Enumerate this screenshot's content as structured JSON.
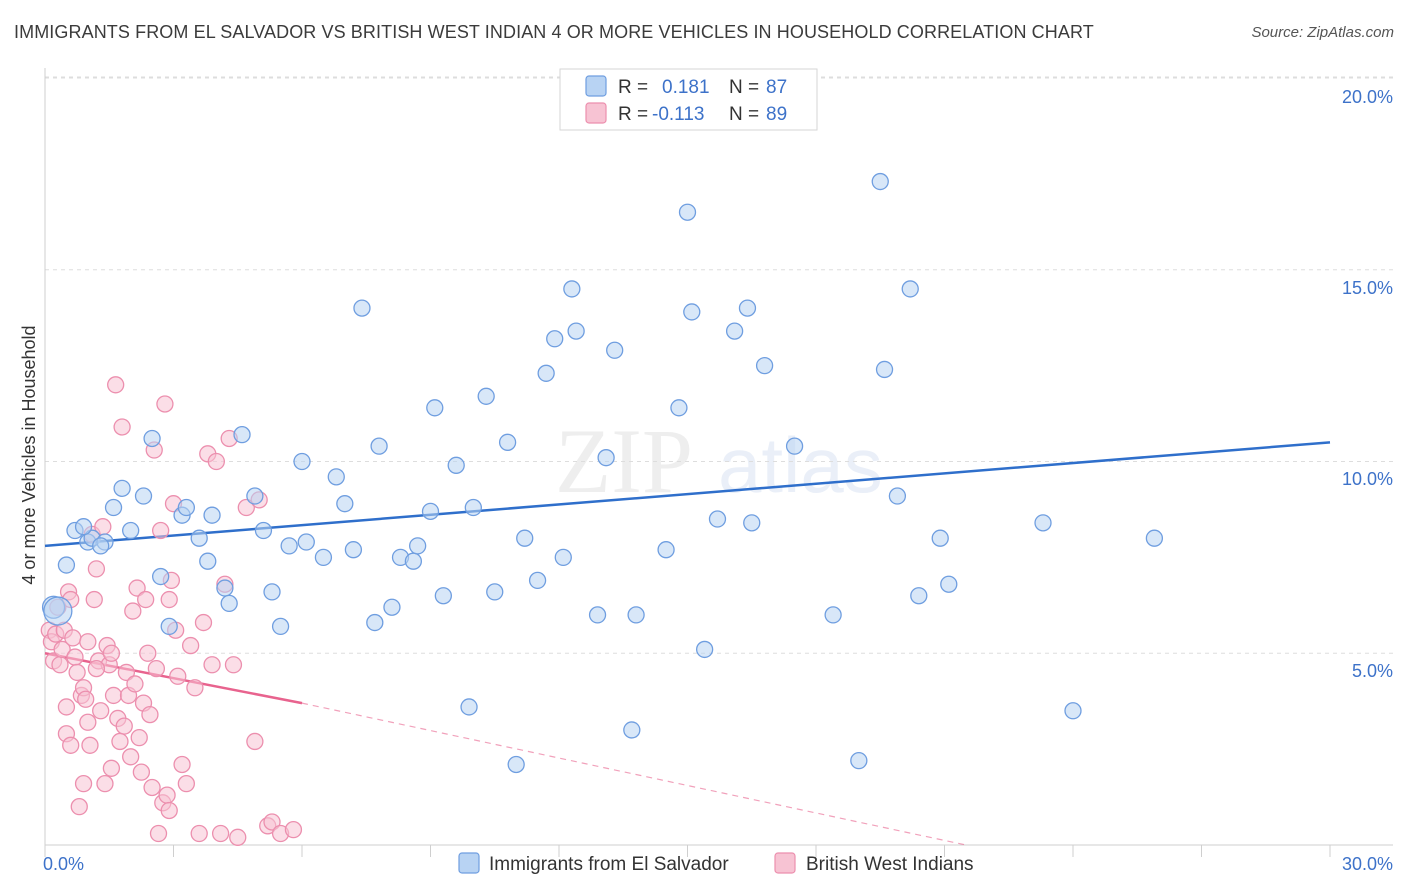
{
  "title": "IMMIGRANTS FROM EL SALVADOR VS BRITISH WEST INDIAN 4 OR MORE VEHICLES IN HOUSEHOLD CORRELATION CHART",
  "source": "Source: ZipAtlas.com",
  "watermark": {
    "zip": "ZIP",
    "atlas": "atlas"
  },
  "legend": [
    {
      "r_label": "R =",
      "r_value": "0.181",
      "n_label": "N =",
      "n_value": "87"
    },
    {
      "r_label": "R =",
      "r_value": "-0.113",
      "n_label": "N =",
      "n_value": "89"
    }
  ],
  "colors": {
    "blue_fill": "#b8d3f3",
    "blue_stroke": "#6f9ee0",
    "blue_line": "#2f6fcb",
    "pink_fill": "#f7c3d3",
    "pink_stroke": "#ec8fae",
    "pink_line": "#e8638e",
    "grid": "#dddddd",
    "tick_text": "#3d72c9"
  },
  "chart_data": {
    "type": "scatter",
    "title": "IMMIGRANTS FROM EL SALVADOR VS BRITISH WEST INDIAN 4 OR MORE VEHICLES IN HOUSEHOLD CORRELATION CHART",
    "xlabel": "",
    "ylabel": "4 or more Vehicles in Household",
    "xlim": [
      0,
      30
    ],
    "ylim": [
      0,
      20
    ],
    "x_tick_labels": [
      "0.0%",
      "30.0%"
    ],
    "y_ticks": [
      5,
      10,
      15,
      20
    ],
    "y_tick_labels": [
      "5.0%",
      "10.0%",
      "15.0%",
      "20.0%"
    ],
    "legend_position": "top-center",
    "series": [
      {
        "name": "Immigrants from El Salvador",
        "color": "#6f9ee0",
        "trend": {
          "x": [
            0,
            30
          ],
          "y": [
            7.8,
            10.5
          ]
        },
        "points": [
          [
            0.2,
            6.2
          ],
          [
            0.5,
            7.3
          ],
          [
            0.7,
            8.2
          ],
          [
            1.0,
            7.9
          ],
          [
            1.1,
            8.0
          ],
          [
            1.4,
            7.9
          ],
          [
            1.6,
            8.8
          ],
          [
            1.8,
            9.3
          ],
          [
            2.0,
            8.2
          ],
          [
            2.3,
            9.1
          ],
          [
            2.5,
            10.6
          ],
          [
            2.7,
            7.0
          ],
          [
            2.9,
            5.7
          ],
          [
            3.2,
            8.6
          ],
          [
            3.3,
            8.8
          ],
          [
            3.6,
            8.0
          ],
          [
            3.8,
            7.4
          ],
          [
            3.9,
            8.6
          ],
          [
            4.2,
            6.7
          ],
          [
            4.3,
            6.3
          ],
          [
            4.6,
            10.7
          ],
          [
            4.9,
            9.1
          ],
          [
            5.1,
            8.2
          ],
          [
            5.3,
            6.6
          ],
          [
            5.5,
            5.7
          ],
          [
            5.7,
            7.8
          ],
          [
            6.0,
            10.0
          ],
          [
            6.1,
            7.9
          ],
          [
            6.5,
            7.5
          ],
          [
            6.8,
            9.6
          ],
          [
            7.0,
            8.9
          ],
          [
            7.2,
            7.7
          ],
          [
            7.4,
            14.0
          ],
          [
            7.7,
            5.8
          ],
          [
            7.8,
            10.4
          ],
          [
            8.1,
            6.2
          ],
          [
            8.3,
            7.5
          ],
          [
            8.6,
            7.4
          ],
          [
            8.7,
            7.8
          ],
          [
            9.0,
            8.7
          ],
          [
            9.1,
            11.4
          ],
          [
            9.3,
            6.5
          ],
          [
            9.6,
            9.9
          ],
          [
            9.9,
            3.6
          ],
          [
            10.0,
            8.8
          ],
          [
            10.3,
            11.7
          ],
          [
            10.5,
            6.6
          ],
          [
            10.8,
            10.5
          ],
          [
            11.0,
            2.1
          ],
          [
            11.2,
            8.0
          ],
          [
            11.5,
            6.9
          ],
          [
            11.7,
            12.3
          ],
          [
            11.9,
            13.2
          ],
          [
            12.1,
            7.5
          ],
          [
            12.3,
            14.5
          ],
          [
            12.4,
            13.4
          ],
          [
            12.9,
            6.0
          ],
          [
            13.1,
            10.1
          ],
          [
            13.3,
            12.9
          ],
          [
            13.7,
            3.0
          ],
          [
            13.8,
            6.0
          ],
          [
            14.5,
            7.7
          ],
          [
            14.8,
            11.4
          ],
          [
            15.0,
            16.5
          ],
          [
            15.1,
            13.9
          ],
          [
            15.4,
            5.1
          ],
          [
            15.7,
            8.5
          ],
          [
            16.1,
            13.4
          ],
          [
            16.4,
            14.0
          ],
          [
            16.5,
            8.4
          ],
          [
            16.8,
            12.5
          ],
          [
            17.5,
            10.4
          ],
          [
            18.4,
            6.0
          ],
          [
            19.0,
            2.2
          ],
          [
            19.5,
            17.3
          ],
          [
            19.6,
            12.4
          ],
          [
            19.9,
            9.1
          ],
          [
            20.2,
            14.5
          ],
          [
            20.4,
            6.5
          ],
          [
            20.9,
            8.0
          ],
          [
            21.1,
            6.8
          ],
          [
            23.3,
            8.4
          ],
          [
            24.0,
            3.5
          ],
          [
            25.9,
            8.0
          ],
          [
            0.3,
            6.1
          ],
          [
            0.9,
            8.3
          ],
          [
            1.3,
            7.8
          ]
        ]
      },
      {
        "name": "British West Indians",
        "color": "#ec8fae",
        "trend": {
          "x": [
            0,
            6.0
          ],
          "y": [
            5.0,
            3.7
          ],
          "x_dashed": [
            6.0,
            21.5
          ],
          "y_dashed": [
            3.7,
            0.0
          ]
        },
        "points": [
          [
            0.1,
            5.6
          ],
          [
            0.15,
            5.3
          ],
          [
            0.2,
            4.8
          ],
          [
            0.25,
            5.5
          ],
          [
            0.3,
            6.2
          ],
          [
            0.35,
            4.7
          ],
          [
            0.4,
            5.1
          ],
          [
            0.45,
            5.6
          ],
          [
            0.5,
            3.6
          ],
          [
            0.5,
            2.9
          ],
          [
            0.55,
            6.6
          ],
          [
            0.6,
            6.4
          ],
          [
            0.65,
            5.4
          ],
          [
            0.7,
            4.9
          ],
          [
            0.75,
            4.5
          ],
          [
            0.8,
            1.0
          ],
          [
            0.85,
            3.9
          ],
          [
            0.9,
            4.1
          ],
          [
            0.95,
            3.8
          ],
          [
            1.0,
            3.2
          ],
          [
            1.05,
            2.6
          ],
          [
            1.1,
            8.1
          ],
          [
            1.15,
            6.4
          ],
          [
            1.2,
            7.2
          ],
          [
            1.25,
            4.8
          ],
          [
            1.3,
            3.5
          ],
          [
            1.35,
            8.3
          ],
          [
            1.4,
            1.6
          ],
          [
            1.45,
            5.2
          ],
          [
            1.5,
            4.7
          ],
          [
            1.55,
            5.0
          ],
          [
            1.6,
            3.9
          ],
          [
            1.65,
            12.0
          ],
          [
            1.7,
            3.3
          ],
          [
            1.75,
            2.7
          ],
          [
            1.8,
            10.9
          ],
          [
            1.85,
            3.1
          ],
          [
            1.9,
            4.5
          ],
          [
            1.95,
            3.9
          ],
          [
            2.0,
            2.3
          ],
          [
            2.05,
            6.1
          ],
          [
            2.1,
            4.2
          ],
          [
            2.15,
            6.7
          ],
          [
            2.2,
            2.8
          ],
          [
            2.25,
            1.9
          ],
          [
            2.3,
            3.7
          ],
          [
            2.35,
            6.4
          ],
          [
            2.4,
            5.0
          ],
          [
            2.45,
            3.4
          ],
          [
            2.5,
            1.5
          ],
          [
            2.55,
            10.3
          ],
          [
            2.6,
            4.6
          ],
          [
            2.65,
            0.3
          ],
          [
            2.7,
            8.2
          ],
          [
            2.75,
            1.1
          ],
          [
            2.8,
            11.5
          ],
          [
            2.85,
            1.3
          ],
          [
            2.9,
            0.9
          ],
          [
            2.95,
            6.9
          ],
          [
            3.0,
            8.9
          ],
          [
            3.05,
            5.6
          ],
          [
            3.1,
            4.4
          ],
          [
            3.2,
            2.1
          ],
          [
            3.3,
            1.6
          ],
          [
            3.4,
            5.2
          ],
          [
            3.5,
            4.1
          ],
          [
            3.6,
            0.3
          ],
          [
            3.8,
            10.2
          ],
          [
            3.9,
            4.7
          ],
          [
            4.0,
            10.0
          ],
          [
            4.1,
            0.3
          ],
          [
            4.3,
            10.6
          ],
          [
            4.4,
            4.7
          ],
          [
            4.5,
            0.2
          ],
          [
            4.7,
            8.8
          ],
          [
            4.9,
            2.7
          ],
          [
            5.0,
            9.0
          ],
          [
            5.2,
            0.5
          ],
          [
            5.3,
            0.6
          ],
          [
            5.5,
            0.3
          ],
          [
            1.0,
            5.3
          ],
          [
            1.2,
            4.6
          ],
          [
            0.6,
            2.6
          ],
          [
            1.55,
            2.0
          ],
          [
            0.9,
            1.6
          ],
          [
            2.9,
            6.4
          ],
          [
            3.7,
            5.8
          ],
          [
            4.2,
            6.8
          ],
          [
            5.8,
            0.4
          ]
        ]
      }
    ]
  }
}
